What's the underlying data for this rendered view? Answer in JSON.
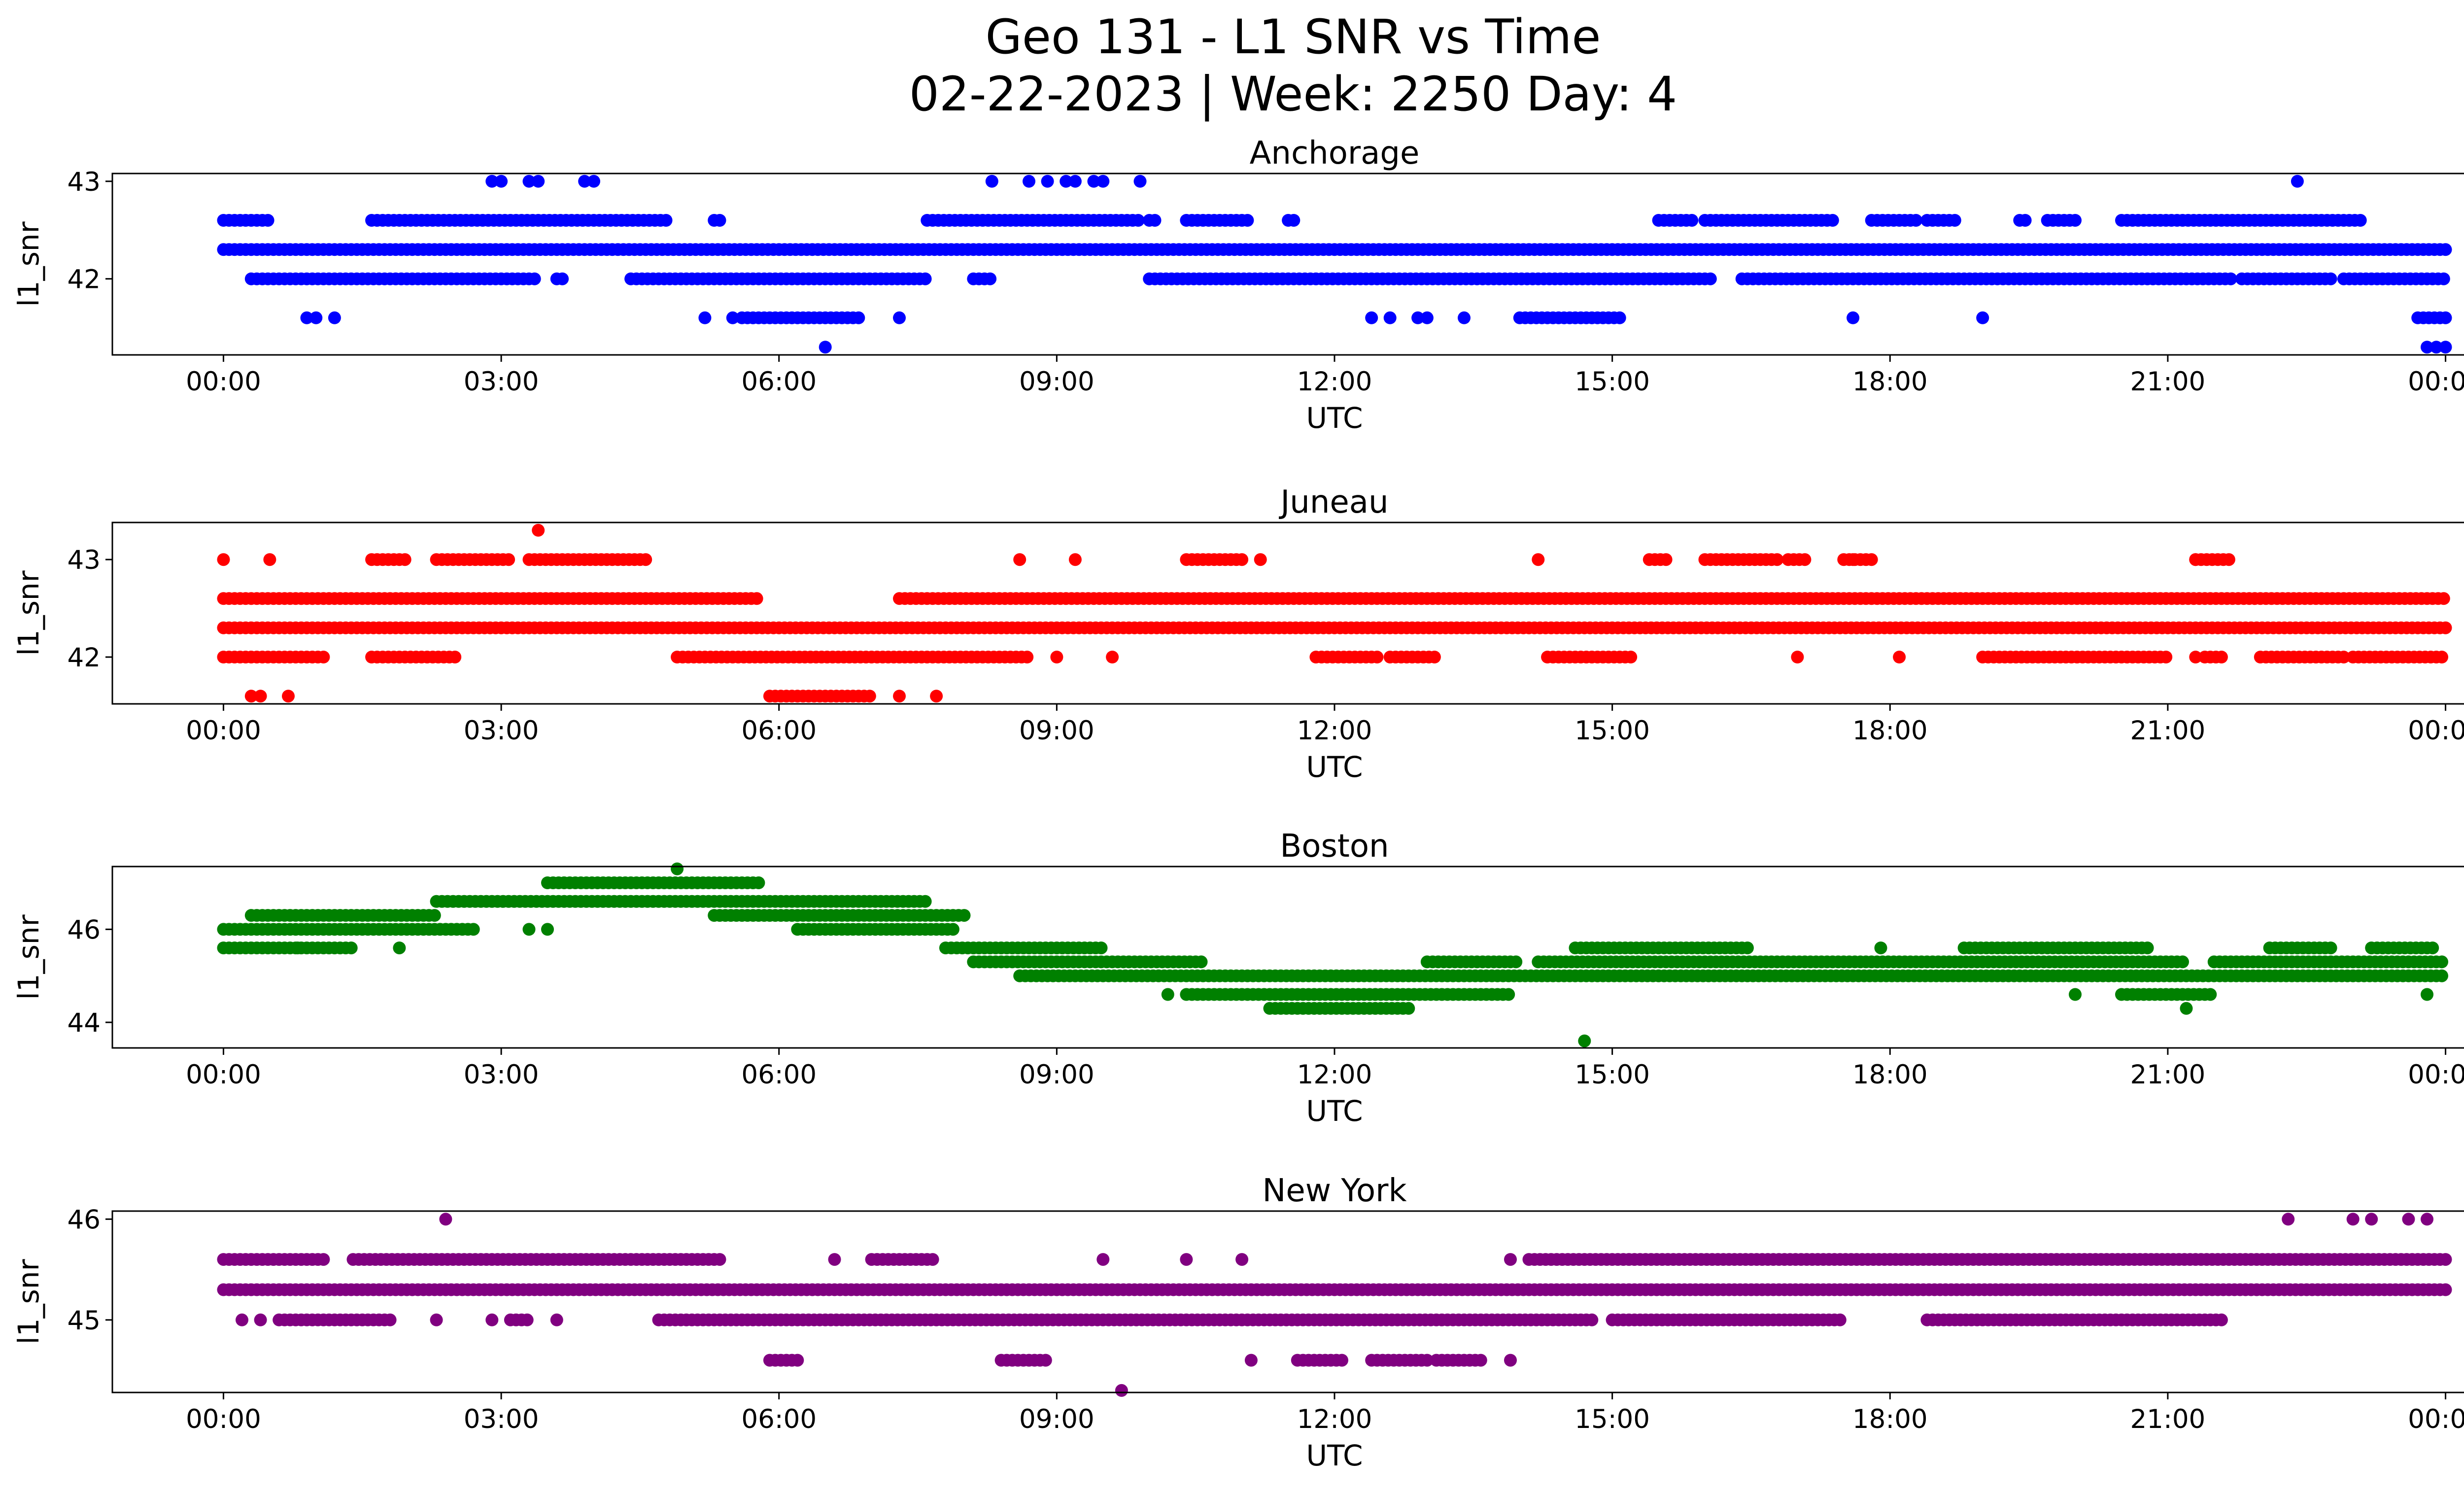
{
  "suptitle": {
    "line1": "Geo 131 - L1 SNR vs Time",
    "line2": "02-22-2023 | Week: 2250 Day: 4"
  },
  "x_tick_labels": [
    "00:00",
    "03:00",
    "06:00",
    "09:00",
    "12:00",
    "15:00",
    "18:00",
    "21:00",
    "00:00"
  ],
  "chart_data": [
    {
      "type": "scatter",
      "title": "Anchorage",
      "xlabel": "UTC",
      "ylabel": "l1_snr",
      "color": "#0000ff",
      "xlim_hours": [
        -1.2,
        25.2
      ],
      "ylim": [
        41.22,
        43.08
      ],
      "yticks": [
        42,
        43
      ],
      "ytick_labels": [
        "42",
        "43"
      ],
      "grid": false,
      "outliers": [
        {
          "x_hours": 2.9,
          "y": 43.0
        },
        {
          "x_hours": 3.0,
          "y": 43.0
        },
        {
          "x_hours": 3.3,
          "y": 43.0
        },
        {
          "x_hours": 3.4,
          "y": 43.0
        },
        {
          "x_hours": 3.9,
          "y": 43.0
        },
        {
          "x_hours": 4.0,
          "y": 43.0
        },
        {
          "x_hours": 8.3,
          "y": 43.0
        },
        {
          "x_hours": 8.7,
          "y": 43.0
        },
        {
          "x_hours": 8.9,
          "y": 43.0
        },
        {
          "x_hours": 9.1,
          "y": 43.0
        },
        {
          "x_hours": 9.2,
          "y": 43.0
        },
        {
          "x_hours": 9.4,
          "y": 43.0
        },
        {
          "x_hours": 9.5,
          "y": 43.0
        },
        {
          "x_hours": 9.9,
          "y": 43.0
        },
        {
          "x_hours": 22.4,
          "y": 43.0
        },
        {
          "x_hours": 0.9,
          "y": 41.6
        },
        {
          "x_hours": 1.0,
          "y": 41.6
        },
        {
          "x_hours": 1.2,
          "y": 41.6
        },
        {
          "x_hours": 5.2,
          "y": 41.6
        },
        {
          "x_hours": 5.5,
          "y": 41.6
        },
        {
          "x_hours": 7.3,
          "y": 41.6
        },
        {
          "x_hours": 12.4,
          "y": 41.6
        },
        {
          "x_hours": 12.6,
          "y": 41.6
        },
        {
          "x_hours": 12.9,
          "y": 41.6
        },
        {
          "x_hours": 13.0,
          "y": 41.6
        },
        {
          "x_hours": 13.4,
          "y": 41.6
        },
        {
          "x_hours": 17.6,
          "y": 41.6
        },
        {
          "x_hours": 19.0,
          "y": 41.6
        },
        {
          "x_hours": 6.5,
          "y": 41.3
        },
        {
          "x_hours": 23.8,
          "y": 41.3
        },
        {
          "x_hours": 23.9,
          "y": 41.3
        },
        {
          "x_hours": 24.0,
          "y": 41.3
        }
      ],
      "bands": [
        {
          "y": 42.3,
          "segments": [
            [
              0.0,
              24.0
            ]
          ]
        },
        {
          "y": 42.0,
          "segments": [
            [
              0.3,
              3.4
            ],
            [
              3.6,
              3.7
            ],
            [
              4.4,
              7.6
            ],
            [
              8.1,
              8.3
            ],
            [
              10.0,
              16.1
            ],
            [
              16.4,
              21.7
            ],
            [
              21.8,
              22.8
            ],
            [
              22.9,
              24.0
            ]
          ]
        },
        {
          "y": 42.6,
          "segments": [
            [
              0.0,
              0.5
            ],
            [
              1.6,
              4.8
            ],
            [
              5.3,
              5.4
            ],
            [
              7.6,
              9.9
            ],
            [
              10.0,
              10.1
            ],
            [
              10.4,
              11.1
            ],
            [
              11.5,
              11.6
            ],
            [
              15.5,
              15.9
            ],
            [
              16.0,
              17.4
            ],
            [
              17.8,
              18.3
            ],
            [
              18.4,
              18.7
            ],
            [
              19.4,
              19.5
            ],
            [
              19.7,
              20.0
            ],
            [
              20.5,
              23.1
            ]
          ]
        },
        {
          "y": 41.6,
          "segments": [
            [
              5.6,
              6.9
            ],
            [
              14.0,
              15.1
            ],
            [
              23.7,
              24.0
            ]
          ]
        }
      ]
    },
    {
      "type": "scatter",
      "title": "Juneau",
      "xlabel": "UTC",
      "ylabel": "l1_snr",
      "color": "#ff0000",
      "xlim_hours": [
        -1.2,
        25.2
      ],
      "ylim": [
        41.52,
        43.38
      ],
      "yticks": [
        42,
        43
      ],
      "ytick_labels": [
        "42",
        "43"
      ],
      "grid": false,
      "outliers": [
        {
          "x_hours": 3.4,
          "y": 43.3
        },
        {
          "x_hours": 0.0,
          "y": 43.0
        },
        {
          "x_hours": 0.5,
          "y": 43.0
        },
        {
          "x_hours": 8.6,
          "y": 43.0
        },
        {
          "x_hours": 9.2,
          "y": 43.0
        },
        {
          "x_hours": 11.2,
          "y": 43.0
        },
        {
          "x_hours": 14.2,
          "y": 43.0
        },
        {
          "x_hours": 17.6,
          "y": 43.0
        },
        {
          "x_hours": 21.3,
          "y": 43.0
        },
        {
          "x_hours": 0.3,
          "y": 41.6
        },
        {
          "x_hours": 0.4,
          "y": 41.6
        },
        {
          "x_hours": 0.7,
          "y": 41.6
        },
        {
          "x_hours": 7.3,
          "y": 41.6
        },
        {
          "x_hours": 7.7,
          "y": 41.6
        },
        {
          "x_hours": 9.0,
          "y": 42.0
        },
        {
          "x_hours": 9.6,
          "y": 42.0
        },
        {
          "x_hours": 17.0,
          "y": 42.0
        },
        {
          "x_hours": 18.1,
          "y": 42.0
        },
        {
          "x_hours": 21.3,
          "y": 42.0
        }
      ],
      "bands": [
        {
          "y": 42.3,
          "segments": [
            [
              0.0,
              24.0
            ]
          ]
        },
        {
          "y": 42.6,
          "segments": [
            [
              0.0,
              5.8
            ],
            [
              7.3,
              24.0
            ]
          ]
        },
        {
          "y": 43.0,
          "segments": [
            [
              1.6,
              2.0
            ],
            [
              2.3,
              3.1
            ],
            [
              3.3,
              4.6
            ],
            [
              10.4,
              11.0
            ],
            [
              15.4,
              15.6
            ],
            [
              16.0,
              16.8
            ],
            [
              16.9,
              17.1
            ],
            [
              17.5,
              17.8
            ],
            [
              21.3,
              21.7
            ]
          ]
        },
        {
          "y": 42.0,
          "segments": [
            [
              0.0,
              1.1
            ],
            [
              1.6,
              2.5
            ],
            [
              4.9,
              8.7
            ],
            [
              11.8,
              12.5
            ],
            [
              12.6,
              13.1
            ],
            [
              14.3,
              15.2
            ],
            [
              19.0,
              21.0
            ],
            [
              21.4,
              21.6
            ],
            [
              22.0,
              22.9
            ],
            [
              23.0,
              24.0
            ]
          ]
        },
        {
          "y": 41.6,
          "segments": [
            [
              5.9,
              7.0
            ]
          ]
        }
      ]
    },
    {
      "type": "scatter",
      "title": "Boston",
      "xlabel": "UTC",
      "ylabel": "l1_snr",
      "color": "#008000",
      "xlim_hours": [
        -1.2,
        25.2
      ],
      "ylim": [
        43.45,
        47.35
      ],
      "yticks": [
        44,
        46
      ],
      "ytick_labels": [
        "44",
        "46"
      ],
      "grid": false,
      "outliers": [
        {
          "x_hours": 4.9,
          "y": 47.3
        },
        {
          "x_hours": 14.7,
          "y": 43.6
        },
        {
          "x_hours": 23.8,
          "y": 44.6
        },
        {
          "x_hours": 20.0,
          "y": 44.6
        },
        {
          "x_hours": 10.2,
          "y": 44.6
        },
        {
          "x_hours": 21.2,
          "y": 44.3
        },
        {
          "x_hours": 0.8,
          "y": 45.6
        },
        {
          "x_hours": 1.9,
          "y": 45.6
        },
        {
          "x_hours": 3.3,
          "y": 46.0
        },
        {
          "x_hours": 3.5,
          "y": 46.0
        },
        {
          "x_hours": 17.9,
          "y": 45.6
        }
      ],
      "bands": [
        {
          "y": 46.0,
          "segments": [
            [
              0.0,
              2.7
            ],
            [
              6.2,
              7.9
            ]
          ]
        },
        {
          "y": 46.3,
          "segments": [
            [
              0.3,
              2.3
            ],
            [
              5.3,
              8.0
            ]
          ]
        },
        {
          "y": 46.6,
          "segments": [
            [
              2.3,
              7.6
            ]
          ]
        },
        {
          "y": 47.0,
          "segments": [
            [
              3.5,
              5.8
            ]
          ]
        },
        {
          "y": 45.6,
          "segments": [
            [
              0.0,
              1.4
            ],
            [
              7.8,
              9.5
            ],
            [
              14.6,
              16.5
            ],
            [
              18.8,
              20.8
            ],
            [
              22.1,
              22.8
            ],
            [
              23.2,
              23.9
            ]
          ]
        },
        {
          "y": 45.3,
          "segments": [
            [
              8.1,
              10.6
            ],
            [
              13.0,
              14.0
            ],
            [
              14.2,
              21.2
            ],
            [
              21.5,
              24.0
            ]
          ]
        },
        {
          "y": 45.0,
          "segments": [
            [
              8.6,
              24.0
            ]
          ]
        },
        {
          "y": 44.6,
          "segments": [
            [
              10.4,
              13.9
            ],
            [
              20.5,
              21.5
            ]
          ]
        },
        {
          "y": 44.3,
          "segments": [
            [
              11.3,
              12.8
            ]
          ]
        }
      ]
    },
    {
      "type": "scatter",
      "title": "New York",
      "xlabel": "UTC",
      "ylabel": "l1_snr",
      "color": "#800080",
      "xlim_hours": [
        -1.2,
        25.2
      ],
      "ylim": [
        44.28,
        46.08
      ],
      "yticks": [
        45,
        46
      ],
      "ytick_labels": [
        "45",
        "46"
      ],
      "grid": false,
      "outliers": [
        {
          "x_hours": 2.4,
          "y": 46.0
        },
        {
          "x_hours": 22.3,
          "y": 46.0
        },
        {
          "x_hours": 23.0,
          "y": 46.0
        },
        {
          "x_hours": 23.2,
          "y": 46.0
        },
        {
          "x_hours": 23.6,
          "y": 46.0
        },
        {
          "x_hours": 23.8,
          "y": 46.0
        },
        {
          "x_hours": 9.7,
          "y": 44.3
        },
        {
          "x_hours": 0.2,
          "y": 45.0
        },
        {
          "x_hours": 0.4,
          "y": 45.0
        },
        {
          "x_hours": 2.3,
          "y": 45.0
        },
        {
          "x_hours": 2.9,
          "y": 45.0
        },
        {
          "x_hours": 3.6,
          "y": 45.0
        },
        {
          "x_hours": 6.6,
          "y": 45.6
        },
        {
          "x_hours": 9.5,
          "y": 45.6
        },
        {
          "x_hours": 10.4,
          "y": 45.6
        },
        {
          "x_hours": 11.0,
          "y": 45.6
        },
        {
          "x_hours": 13.9,
          "y": 45.6
        },
        {
          "x_hours": 13.9,
          "y": 44.6
        },
        {
          "x_hours": 11.1,
          "y": 44.6
        }
      ],
      "bands": [
        {
          "y": 45.3,
          "segments": [
            [
              0.0,
              24.0
            ]
          ]
        },
        {
          "y": 45.6,
          "segments": [
            [
              0.0,
              1.1
            ],
            [
              1.4,
              5.4
            ],
            [
              7.0,
              7.7
            ],
            [
              14.1,
              24.0
            ]
          ]
        },
        {
          "y": 45.0,
          "segments": [
            [
              0.6,
              1.8
            ],
            [
              3.1,
              3.3
            ],
            [
              4.7,
              14.8
            ],
            [
              15.0,
              17.5
            ],
            [
              18.4,
              21.6
            ]
          ]
        },
        {
          "y": 44.6,
          "segments": [
            [
              5.9,
              6.2
            ],
            [
              8.4,
              8.9
            ],
            [
              11.6,
              12.1
            ],
            [
              12.4,
              13.0
            ],
            [
              13.1,
              13.6
            ]
          ]
        }
      ]
    }
  ]
}
